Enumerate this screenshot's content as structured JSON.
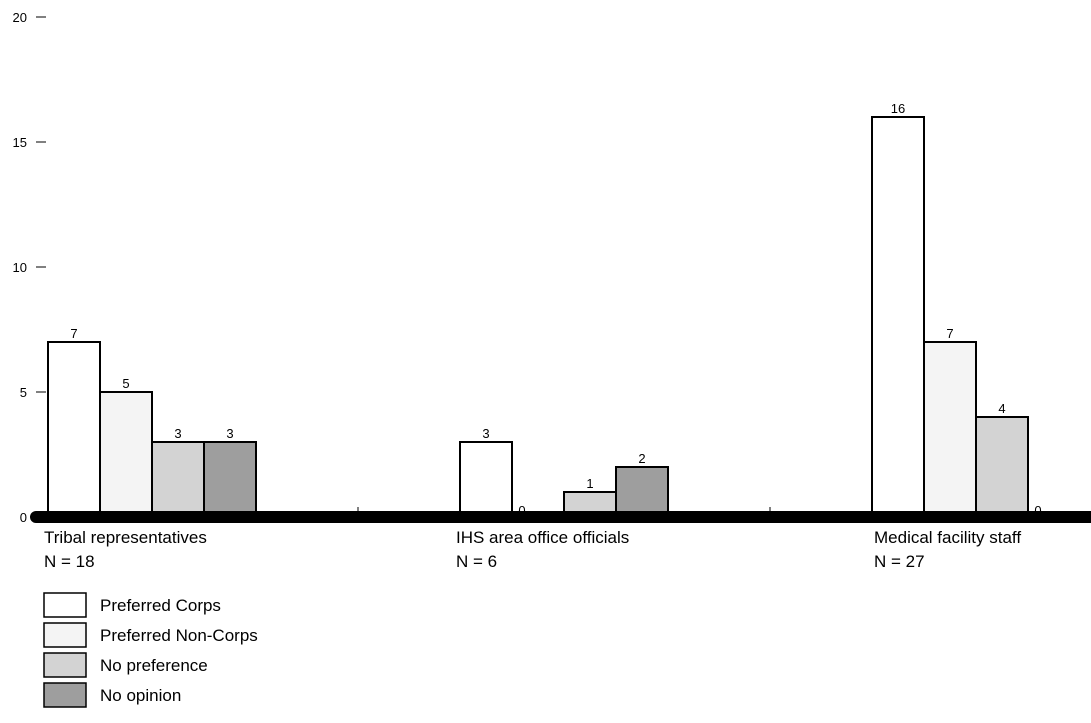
{
  "chart_data": {
    "type": "bar",
    "categories": [
      "Tribal representatives",
      "IHS area office officials",
      "Medical facility staff"
    ],
    "category_notes": [
      "N = 18",
      "N = 6",
      "N = 27"
    ],
    "series": [
      {
        "name": "Preferred Corps",
        "values": [
          7,
          3,
          16
        ],
        "color": "#ffffff"
      },
      {
        "name": "Preferred Non-Corps",
        "values": [
          5,
          0,
          7
        ],
        "color": "#f4f4f4"
      },
      {
        "name": "No preference",
        "values": [
          3,
          1,
          4
        ],
        "color": "#d3d3d3"
      },
      {
        "name": "No opinion",
        "values": [
          3,
          2,
          0
        ],
        "color": "#9e9e9e"
      }
    ],
    "ylim": [
      0,
      20
    ],
    "yticks": [
      "0",
      "5",
      "10",
      "15",
      "20"
    ],
    "legend_position": "bottom-left",
    "grid": false
  }
}
